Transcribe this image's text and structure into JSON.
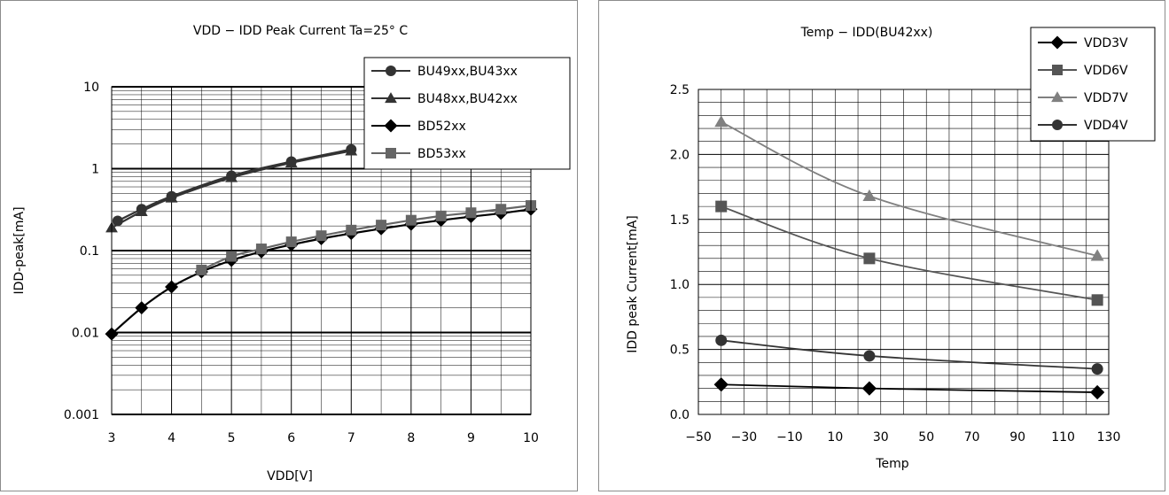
{
  "chart_data": [
    {
      "type": "line",
      "title": "VDD − IDD Peak Current Ta=25° C",
      "xlabel": "VDD[V]",
      "ylabel": "IDD-peak[mA]",
      "xlim": [
        3,
        10
      ],
      "ylim": [
        0.001,
        10
      ],
      "yscale": "log",
      "x_ticks": [
        "3",
        "4",
        "5",
        "6",
        "7",
        "8",
        "9",
        "10"
      ],
      "y_ticks": [
        "0.001",
        "0.01",
        "0.1",
        "1",
        "10"
      ],
      "grid": true,
      "legend_position": "top-right",
      "series": [
        {
          "name": "BU49xx,BU43xx",
          "marker": "circle",
          "color": "#333333",
          "x": [
            3.1,
            3.5,
            4,
            5,
            6,
            7
          ],
          "y": [
            0.23,
            0.32,
            0.46,
            0.82,
            1.22,
            1.72
          ]
        },
        {
          "name": "BU48xx,BU42xx",
          "marker": "triangle",
          "color": "#333333",
          "x": [
            3,
            3.5,
            4,
            5,
            6,
            7
          ],
          "y": [
            0.19,
            0.3,
            0.44,
            0.78,
            1.18,
            1.65
          ]
        },
        {
          "name": "BD52xx",
          "marker": "diamond",
          "color": "#000000",
          "x": [
            3,
            3.5,
            4,
            4.5,
            5,
            5.5,
            6,
            6.5,
            7,
            7.5,
            8,
            8.5,
            9,
            9.5,
            10
          ],
          "y": [
            0.0096,
            0.02,
            0.036,
            0.055,
            0.076,
            0.097,
            0.118,
            0.14,
            0.162,
            0.185,
            0.21,
            0.235,
            0.26,
            0.285,
            0.32
          ]
        },
        {
          "name": "BD53xx",
          "marker": "square",
          "color": "#666666",
          "x": [
            4.5,
            5,
            5.5,
            6,
            6.5,
            7,
            7.5,
            8,
            8.5,
            9,
            9.5,
            10
          ],
          "y": [
            0.058,
            0.085,
            0.105,
            0.128,
            0.152,
            0.178,
            0.205,
            0.235,
            0.265,
            0.29,
            0.32,
            0.355
          ]
        }
      ]
    },
    {
      "type": "line",
      "title": "Temp − IDD(BU42xx)",
      "xlabel": "Temp",
      "ylabel": "IDD peak Current[mA]",
      "xlim": [
        -50,
        130
      ],
      "ylim": [
        0,
        2.5
      ],
      "x_ticks": [
        "−50",
        "−30",
        "−10",
        "10",
        "30",
        "50",
        "70",
        "90",
        "110",
        "130"
      ],
      "y_ticks": [
        "0.0",
        "0.5",
        "1.0",
        "1.5",
        "2.0",
        "2.5"
      ],
      "grid": true,
      "legend_position": "top-right",
      "series": [
        {
          "name": "VDD3V",
          "marker": "diamond",
          "color": "#000000",
          "x": [
            -40,
            25,
            125
          ],
          "y": [
            0.23,
            0.2,
            0.17
          ]
        },
        {
          "name": "VDD6V",
          "marker": "square",
          "color": "#555555",
          "x": [
            -40,
            25,
            125
          ],
          "y": [
            1.6,
            1.2,
            0.88
          ]
        },
        {
          "name": "VDD7V",
          "marker": "triangle",
          "color": "#808080",
          "x": [
            -40,
            25,
            125
          ],
          "y": [
            2.25,
            1.68,
            1.22
          ]
        },
        {
          "name": "VDD4V",
          "marker": "circle",
          "color": "#333333",
          "x": [
            -40,
            25,
            125
          ],
          "y": [
            0.57,
            0.45,
            0.35
          ]
        }
      ]
    }
  ]
}
